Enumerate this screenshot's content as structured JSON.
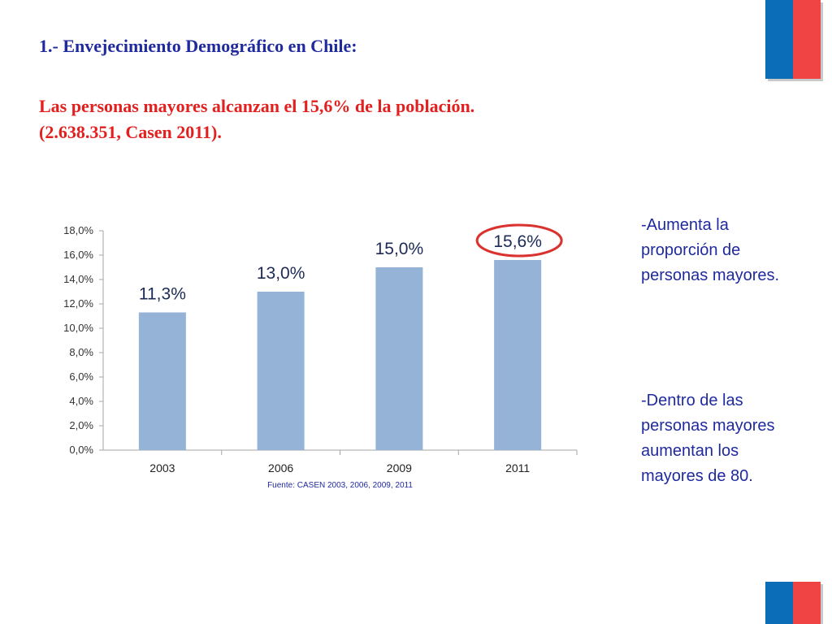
{
  "title": "1.- Envejecimiento Demográfico en Chile:",
  "subtitle": {
    "line1": "Las personas mayores alcanzan el 15,6% de la población.",
    "line2": "(2.638.351, Casen 2011)."
  },
  "notes": {
    "first": "-Aumenta la proporción de personas mayores.",
    "second": "-Dentro de las personas mayores aumentan los mayores de 80."
  },
  "colors": {
    "title": "#1f2a9e",
    "subtitle": "#e2201f",
    "bar": "#95b3d7",
    "highlight_circle": "#d9322f",
    "flag_blue": "#0b6cb8",
    "flag_red": "#ef4443"
  },
  "chart_data": {
    "type": "bar",
    "categories": [
      "2003",
      "2006",
      "2009",
      "2011"
    ],
    "values": [
      11.3,
      13.0,
      15.0,
      15.6
    ],
    "data_labels": [
      "11,3%",
      "13,0%",
      "15,0%",
      "15,6%"
    ],
    "y_ticks": [
      "0,0%",
      "2,0%",
      "4,0%",
      "6,0%",
      "8,0%",
      "10,0%",
      "12,0%",
      "14,0%",
      "16,0%",
      "18,0%"
    ],
    "ylim": [
      0,
      18
    ],
    "highlighted_category": "2011",
    "source": "Fuente: CASEN 2003, 2006, 2009, 2011",
    "grid": false,
    "legend": "none"
  }
}
